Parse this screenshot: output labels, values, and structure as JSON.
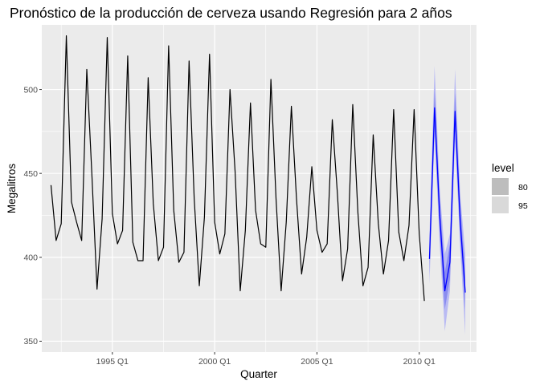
{
  "chart_data": {
    "type": "line",
    "title": "Pronóstico de la producción de cerveza usando Regresión para 2 años",
    "xlabel": "Quarter",
    "ylabel": "Megalitros",
    "x_ticks": [
      1995,
      2000,
      2005,
      2010
    ],
    "x_tick_labels": [
      "1995 Q1",
      "2000 Q1",
      "2005 Q1",
      "2010 Q1"
    ],
    "y_ticks": [
      350,
      400,
      450,
      500
    ],
    "y_tick_labels": [
      "350",
      "400",
      "450",
      "500"
    ],
    "xlim": [
      1991.55,
      2012.8
    ],
    "ylim": [
      343.5,
      538.5
    ],
    "grid": true,
    "legend": {
      "title": "level",
      "position": "right",
      "entries": [
        "80",
        "95"
      ]
    },
    "series": [
      {
        "role": "observed",
        "color": "#000000",
        "x": [
          1992.0,
          1992.25,
          1992.5,
          1992.75,
          1993.0,
          1993.25,
          1993.5,
          1993.75,
          1994.0,
          1994.25,
          1994.5,
          1994.75,
          1995.0,
          1995.25,
          1995.5,
          1995.75,
          1996.0,
          1996.25,
          1996.5,
          1996.75,
          1997.0,
          1997.25,
          1997.5,
          1997.75,
          1998.0,
          1998.25,
          1998.5,
          1998.75,
          1999.0,
          1999.25,
          1999.5,
          1999.75,
          2000.0,
          2000.25,
          2000.5,
          2000.75,
          2001.0,
          2001.25,
          2001.5,
          2001.75,
          2002.0,
          2002.25,
          2002.5,
          2002.75,
          2003.0,
          2003.25,
          2003.5,
          2003.75,
          2004.0,
          2004.25,
          2004.5,
          2004.75,
          2005.0,
          2005.25,
          2005.5,
          2005.75,
          2006.0,
          2006.25,
          2006.5,
          2006.75,
          2007.0,
          2007.25,
          2007.5,
          2007.75,
          2008.0,
          2008.25,
          2008.5,
          2008.75,
          2009.0,
          2009.25,
          2009.5,
          2009.75,
          2010.0,
          2010.25
        ],
        "y": [
          443,
          410,
          420,
          532,
          433,
          421,
          410,
          512,
          449,
          381,
          423,
          531,
          426,
          408,
          416,
          520,
          409,
          398,
          398,
          507,
          432,
          398,
          406,
          526,
          428,
          397,
          403,
          517,
          435,
          383,
          424,
          521,
          421,
          402,
          414,
          500,
          451,
          380,
          416,
          492,
          428,
          408,
          406,
          506,
          435,
          380,
          421,
          490,
          435,
          390,
          412,
          454,
          416,
          403,
          408,
          482,
          438,
          386,
          405,
          491,
          427,
          383,
          394,
          473,
          420,
          390,
          410,
          488,
          415,
          398,
          419,
          488,
          414,
          374
        ]
      },
      {
        "role": "forecast",
        "color": "#0000ff",
        "x": [
          2010.5,
          2010.75,
          2011.0,
          2011.25,
          2011.5,
          2011.75,
          2012.0,
          2012.25
        ],
        "mean": [
          399,
          489,
          425,
          380,
          397,
          487,
          422,
          379
        ],
        "lo80": [
          390,
          478,
          414,
          369,
          387,
          476,
          411,
          369
        ],
        "hi80": [
          409,
          500,
          435,
          391,
          408,
          498,
          433,
          390
        ],
        "lo95": [
          384,
          472,
          408,
          356,
          380,
          470,
          406,
          354
        ],
        "hi95": [
          414,
          514,
          441,
          402,
          414,
          512,
          438,
          402
        ]
      }
    ],
    "band_colors": {
      "80": "#8a8cf0",
      "95": "#b9baf3"
    },
    "legend_swatch_colors": {
      "80": "#bdbdbd",
      "95": "#d9d9d9"
    }
  }
}
